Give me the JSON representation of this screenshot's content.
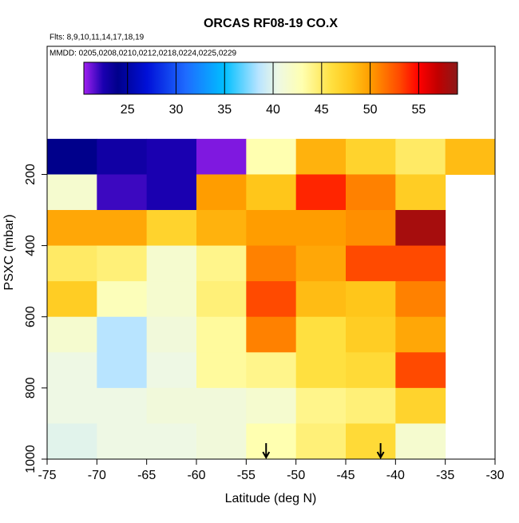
{
  "chart_data": {
    "type": "heatmap",
    "title": "ORCAS RF08-19 CO.X",
    "subtitle": "Flts: 8,9,10,11,14,17,18,19",
    "annotation": "MMDD: 0205,0208,0210,0212,0218,0224,0225,0229",
    "xlabel": "Latitude (deg N)",
    "ylabel": "PSXC (mbar)",
    "xlim": [
      -75,
      -30
    ],
    "xticks": [
      -75,
      -70,
      -65,
      -60,
      -55,
      -50,
      -45,
      -40,
      -35,
      -30
    ],
    "ylim": [
      1000,
      -160
    ],
    "yticks": [
      200,
      400,
      600,
      800,
      1000
    ],
    "x_bins": [
      -75,
      -70,
      -65,
      -60,
      -55,
      -50,
      -45,
      -40,
      -35,
      -30
    ],
    "y_bins": [
      100,
      200,
      300,
      400,
      500,
      600,
      700,
      800,
      900,
      1000
    ],
    "values": [
      [
        24,
        23,
        22.5,
        21,
        43,
        49,
        47,
        45,
        48.5
      ],
      [
        41.5,
        22,
        22.5,
        50,
        48,
        54,
        51,
        47.5,
        null
      ],
      [
        49.5,
        49.5,
        47,
        49,
        50,
        50,
        50.5,
        58,
        null
      ],
      [
        45,
        44.5,
        41.5,
        44,
        51,
        49.5,
        53,
        53,
        null
      ],
      [
        47.5,
        42.5,
        41.5,
        44.5,
        53,
        48.5,
        48,
        51,
        null
      ],
      [
        41.5,
        38.5,
        41,
        43.5,
        51,
        46,
        47.5,
        49.5,
        null
      ],
      [
        40.5,
        38.5,
        40.5,
        43.5,
        44,
        46,
        46.5,
        53,
        null
      ],
      [
        40.5,
        40.5,
        41,
        41,
        41.5,
        44,
        44.5,
        47,
        null
      ],
      [
        40,
        40.5,
        40.5,
        41,
        43,
        44.5,
        46.5,
        41.5,
        null
      ]
    ],
    "arrows": [
      -53,
      -41.5
    ],
    "colorbar": {
      "lim": [
        20.5,
        59
      ],
      "ticks": [
        25,
        30,
        35,
        40,
        45,
        50,
        55
      ],
      "stops": [
        [
          20.5,
          "#a020f0"
        ],
        [
          22.5,
          "#1a00b0"
        ],
        [
          24,
          "#00008b"
        ],
        [
          27,
          "#0010d8"
        ],
        [
          31,
          "#1e6bff"
        ],
        [
          35,
          "#00bfff"
        ],
        [
          38.5,
          "#b8e4ff"
        ],
        [
          40.5,
          "#eef8e4"
        ],
        [
          43,
          "#ffffb0"
        ],
        [
          46,
          "#ffe040"
        ],
        [
          48,
          "#ffc61a"
        ],
        [
          50,
          "#ff9d00"
        ],
        [
          53,
          "#ff4a00"
        ],
        [
          55,
          "#ff0000"
        ],
        [
          57,
          "#c00000"
        ],
        [
          59,
          "#8b1a1a"
        ]
      ]
    }
  }
}
